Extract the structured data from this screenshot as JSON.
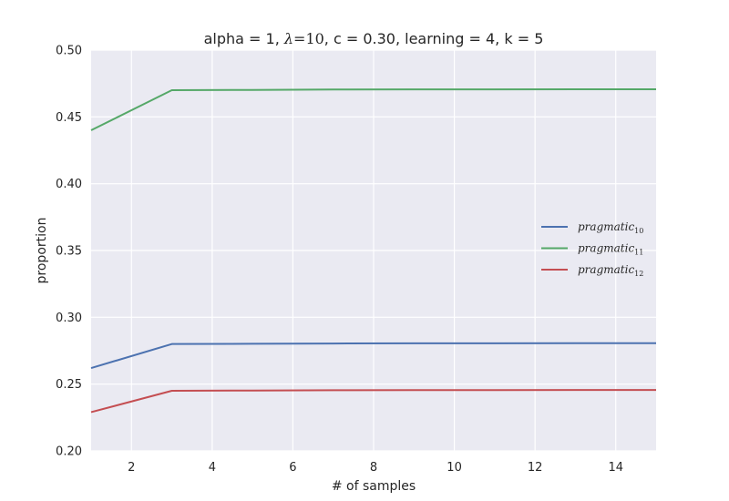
{
  "chart_data": {
    "type": "line",
    "title": {
      "prefix": "alpha = 1, ",
      "lambda_symbol": "λ",
      "lambda_value": "=10",
      "suffix": ", c = 0.30, learning = 4, k = 5"
    },
    "xlabel": "# of samples",
    "ylabel": "proportion",
    "xlim": [
      1,
      15
    ],
    "ylim": [
      0.2,
      0.5
    ],
    "xticks": [
      2,
      4,
      6,
      8,
      10,
      12,
      14
    ],
    "xtick_labels": [
      "2",
      "4",
      "6",
      "8",
      "10",
      "12",
      "14"
    ],
    "yticks": [
      0.2,
      0.25,
      0.3,
      0.35,
      0.4,
      0.45,
      0.5
    ],
    "ytick_labels": [
      "0.20",
      "0.25",
      "0.30",
      "0.35",
      "0.40",
      "0.45",
      "0.50"
    ],
    "x": [
      1,
      3,
      5,
      7,
      9,
      11,
      13,
      15
    ],
    "grid": true,
    "legend_position": "center-right",
    "series": [
      {
        "name": "pragmatic",
        "subscript": "10",
        "color": "#4c72b0",
        "values": [
          0.262,
          0.28,
          0.2802,
          0.2804,
          0.2805,
          0.2805,
          0.2806,
          0.2806
        ]
      },
      {
        "name": "pragmatic",
        "subscript": "11",
        "color": "#55a868",
        "values": [
          0.44,
          0.47,
          0.4702,
          0.4705,
          0.4706,
          0.4706,
          0.4707,
          0.4707
        ]
      },
      {
        "name": "pragmatic",
        "subscript": "12",
        "color": "#c44e52",
        "values": [
          0.229,
          0.245,
          0.2452,
          0.2454,
          0.2455,
          0.2455,
          0.2456,
          0.2456
        ]
      }
    ]
  }
}
